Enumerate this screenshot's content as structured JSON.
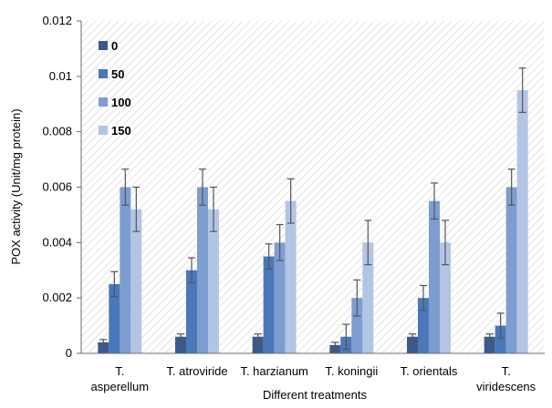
{
  "chart_data": {
    "type": "bar",
    "title": "",
    "xlabel": "Different treatments",
    "ylabel": "POX activity (Unit/mg protein)",
    "ylim": [
      0,
      0.012
    ],
    "yticks": [
      "0",
      "0.002",
      "0.004",
      "0.006",
      "0.008",
      "0.01",
      "0.012"
    ],
    "grid": false,
    "background_pattern": "diagonal-hatch",
    "legend_position": "top-left",
    "categories": [
      [
        "T.",
        "asperellum"
      ],
      [
        "T. atroviride"
      ],
      [
        "T. harzianum"
      ],
      [
        "T. koningii"
      ],
      [
        "T. orientals"
      ],
      [
        "T.",
        "viridescens"
      ]
    ],
    "series": [
      {
        "name": "0",
        "color": "#3a5a8c",
        "values": [
          0.0004,
          0.0006,
          0.0006,
          0.0003,
          0.0006,
          0.0006
        ],
        "errors": [
          0.0001,
          0.0001,
          0.0001,
          0.0001,
          0.0001,
          0.0001
        ]
      },
      {
        "name": "50",
        "color": "#4a78b8",
        "values": [
          0.0025,
          0.003,
          0.0035,
          0.0006,
          0.002,
          0.001
        ],
        "errors": [
          0.00045,
          0.00045,
          0.00045,
          0.00045,
          0.00045,
          0.00045
        ]
      },
      {
        "name": "100",
        "color": "#7d9dd0",
        "values": [
          0.006,
          0.006,
          0.004,
          0.002,
          0.0055,
          0.006
        ],
        "errors": [
          0.00065,
          0.00065,
          0.00065,
          0.00065,
          0.00065,
          0.00065
        ]
      },
      {
        "name": "150",
        "color": "#b3c5e4",
        "values": [
          0.0052,
          0.0052,
          0.0055,
          0.004,
          0.004,
          0.0095
        ],
        "errors": [
          0.0008,
          0.0008,
          0.0008,
          0.0008,
          0.0008,
          0.0008
        ]
      }
    ]
  }
}
